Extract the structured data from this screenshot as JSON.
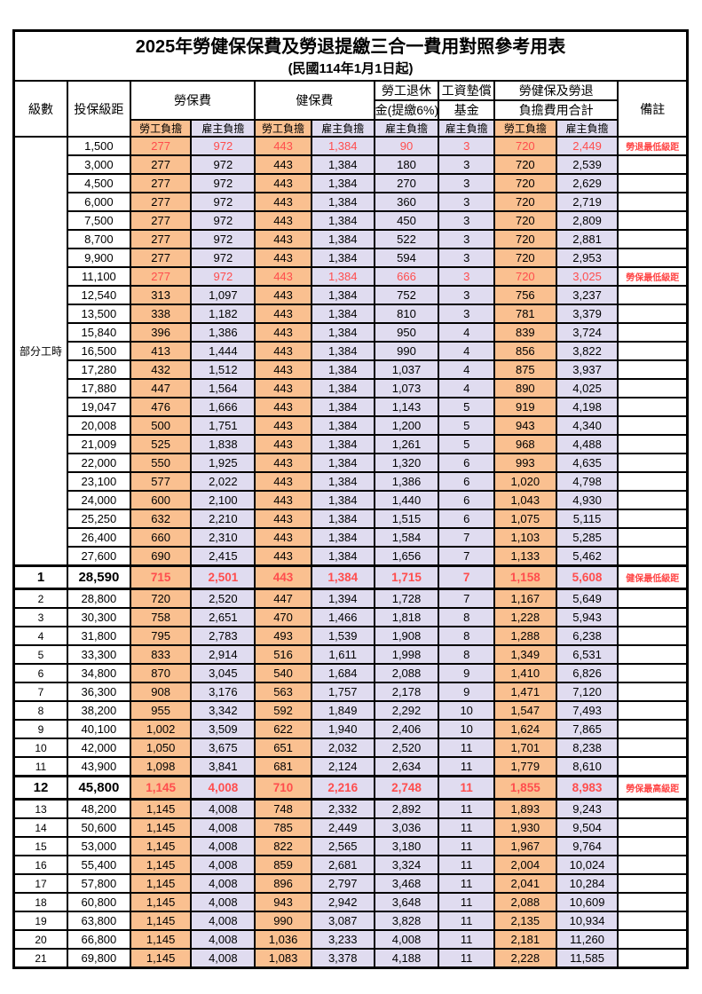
{
  "title": "2025年勞健保保費及勞退提繳三合一費用對照參考用表",
  "subtitle": "(民國114年1月1日起)",
  "header": {
    "level": "級數",
    "salary_bracket": "投保級距",
    "labor_insurance": "勞保費",
    "health_insurance": "健保費",
    "pension_line1": "勞工退休",
    "pension_line2": "金(提繳6%)",
    "wage_fund_line1": "工資墊償",
    "wage_fund_line2": "基金",
    "total_line1": "勞健保及勞退",
    "total_line2": "負擔費用合計",
    "remark": "備註",
    "worker_share": "勞工負擔",
    "employer_share": "雇主負擔"
  },
  "part_time_label": "部分工時",
  "part_time_rowspan": 23,
  "colors": {
    "worker_column_bg": "#FAC090",
    "employer_column_bg": "#E0DCF0",
    "highlight_red": "#FF4D4D",
    "note_red": "#FF4545",
    "border_black": "#000000"
  },
  "rows": [
    {
      "level": "",
      "salary": "1,500",
      "values": [
        "277",
        "972",
        "443",
        "1,384",
        "90",
        "3",
        "720",
        "2,449"
      ],
      "note": "勞退最低級距",
      "style": "hl"
    },
    {
      "level": "",
      "salary": "3,000",
      "values": [
        "277",
        "972",
        "443",
        "1,384",
        "180",
        "3",
        "720",
        "2,539"
      ],
      "note": "",
      "style": ""
    },
    {
      "level": "",
      "salary": "4,500",
      "values": [
        "277",
        "972",
        "443",
        "1,384",
        "270",
        "3",
        "720",
        "2,629"
      ],
      "note": "",
      "style": ""
    },
    {
      "level": "",
      "salary": "6,000",
      "values": [
        "277",
        "972",
        "443",
        "1,384",
        "360",
        "3",
        "720",
        "2,719"
      ],
      "note": "",
      "style": ""
    },
    {
      "level": "",
      "salary": "7,500",
      "values": [
        "277",
        "972",
        "443",
        "1,384",
        "450",
        "3",
        "720",
        "2,809"
      ],
      "note": "",
      "style": ""
    },
    {
      "level": "",
      "salary": "8,700",
      "values": [
        "277",
        "972",
        "443",
        "1,384",
        "522",
        "3",
        "720",
        "2,881"
      ],
      "note": "",
      "style": ""
    },
    {
      "level": "",
      "salary": "9,900",
      "values": [
        "277",
        "972",
        "443",
        "1,384",
        "594",
        "3",
        "720",
        "2,953"
      ],
      "note": "",
      "style": ""
    },
    {
      "level": "",
      "salary": "11,100",
      "values": [
        "277",
        "972",
        "443",
        "1,384",
        "666",
        "3",
        "720",
        "3,025"
      ],
      "note": "勞保最低級距",
      "style": "hl"
    },
    {
      "level": "",
      "salary": "12,540",
      "values": [
        "313",
        "1,097",
        "443",
        "1,384",
        "752",
        "3",
        "756",
        "3,237"
      ],
      "note": "",
      "style": ""
    },
    {
      "level": "",
      "salary": "13,500",
      "values": [
        "338",
        "1,182",
        "443",
        "1,384",
        "810",
        "3",
        "781",
        "3,379"
      ],
      "note": "",
      "style": ""
    },
    {
      "level": "",
      "salary": "15,840",
      "values": [
        "396",
        "1,386",
        "443",
        "1,384",
        "950",
        "4",
        "839",
        "3,724"
      ],
      "note": "",
      "style": ""
    },
    {
      "level": "",
      "salary": "16,500",
      "values": [
        "413",
        "1,444",
        "443",
        "1,384",
        "990",
        "4",
        "856",
        "3,822"
      ],
      "note": "",
      "style": ""
    },
    {
      "level": "",
      "salary": "17,280",
      "values": [
        "432",
        "1,512",
        "443",
        "1,384",
        "1,037",
        "4",
        "875",
        "3,937"
      ],
      "note": "",
      "style": ""
    },
    {
      "level": "",
      "salary": "17,880",
      "values": [
        "447",
        "1,564",
        "443",
        "1,384",
        "1,073",
        "4",
        "890",
        "4,025"
      ],
      "note": "",
      "style": ""
    },
    {
      "level": "",
      "salary": "19,047",
      "values": [
        "476",
        "1,666",
        "443",
        "1,384",
        "1,143",
        "5",
        "919",
        "4,198"
      ],
      "note": "",
      "style": ""
    },
    {
      "level": "",
      "salary": "20,008",
      "values": [
        "500",
        "1,751",
        "443",
        "1,384",
        "1,200",
        "5",
        "943",
        "4,340"
      ],
      "note": "",
      "style": ""
    },
    {
      "level": "",
      "salary": "21,009",
      "values": [
        "525",
        "1,838",
        "443",
        "1,384",
        "1,261",
        "5",
        "968",
        "4,488"
      ],
      "note": "",
      "style": ""
    },
    {
      "level": "",
      "salary": "22,000",
      "values": [
        "550",
        "1,925",
        "443",
        "1,384",
        "1,320",
        "6",
        "993",
        "4,635"
      ],
      "note": "",
      "style": ""
    },
    {
      "level": "",
      "salary": "23,100",
      "values": [
        "577",
        "2,022",
        "443",
        "1,384",
        "1,386",
        "6",
        "1,020",
        "4,798"
      ],
      "note": "",
      "style": ""
    },
    {
      "level": "",
      "salary": "24,000",
      "values": [
        "600",
        "2,100",
        "443",
        "1,384",
        "1,440",
        "6",
        "1,043",
        "4,930"
      ],
      "note": "",
      "style": ""
    },
    {
      "level": "",
      "salary": "25,250",
      "values": [
        "632",
        "2,210",
        "443",
        "1,384",
        "1,515",
        "6",
        "1,075",
        "5,115"
      ],
      "note": "",
      "style": ""
    },
    {
      "level": "",
      "salary": "26,400",
      "values": [
        "660",
        "2,310",
        "443",
        "1,384",
        "1,584",
        "7",
        "1,103",
        "5,285"
      ],
      "note": "",
      "style": ""
    },
    {
      "level": "",
      "salary": "27,600",
      "values": [
        "690",
        "2,415",
        "443",
        "1,384",
        "1,656",
        "7",
        "1,133",
        "5,462"
      ],
      "note": "",
      "style": ""
    },
    {
      "level": "1",
      "salary": "28,590",
      "values": [
        "715",
        "2,501",
        "443",
        "1,384",
        "1,715",
        "7",
        "1,158",
        "5,608"
      ],
      "note": "健保最低級距",
      "style": "hlbold"
    },
    {
      "level": "2",
      "salary": "28,800",
      "values": [
        "720",
        "2,520",
        "447",
        "1,394",
        "1,728",
        "7",
        "1,167",
        "5,649"
      ],
      "note": "",
      "style": ""
    },
    {
      "level": "3",
      "salary": "30,300",
      "values": [
        "758",
        "2,651",
        "470",
        "1,466",
        "1,818",
        "8",
        "1,228",
        "5,943"
      ],
      "note": "",
      "style": ""
    },
    {
      "level": "4",
      "salary": "31,800",
      "values": [
        "795",
        "2,783",
        "493",
        "1,539",
        "1,908",
        "8",
        "1,288",
        "6,238"
      ],
      "note": "",
      "style": ""
    },
    {
      "level": "5",
      "salary": "33,300",
      "values": [
        "833",
        "2,914",
        "516",
        "1,611",
        "1,998",
        "8",
        "1,349",
        "6,531"
      ],
      "note": "",
      "style": ""
    },
    {
      "level": "6",
      "salary": "34,800",
      "values": [
        "870",
        "3,045",
        "540",
        "1,684",
        "2,088",
        "9",
        "1,410",
        "6,826"
      ],
      "note": "",
      "style": ""
    },
    {
      "level": "7",
      "salary": "36,300",
      "values": [
        "908",
        "3,176",
        "563",
        "1,757",
        "2,178",
        "9",
        "1,471",
        "7,120"
      ],
      "note": "",
      "style": ""
    },
    {
      "level": "8",
      "salary": "38,200",
      "values": [
        "955",
        "3,342",
        "592",
        "1,849",
        "2,292",
        "10",
        "1,547",
        "7,493"
      ],
      "note": "",
      "style": ""
    },
    {
      "level": "9",
      "salary": "40,100",
      "values": [
        "1,002",
        "3,509",
        "622",
        "1,940",
        "2,406",
        "10",
        "1,624",
        "7,865"
      ],
      "note": "",
      "style": ""
    },
    {
      "level": "10",
      "salary": "42,000",
      "values": [
        "1,050",
        "3,675",
        "651",
        "2,032",
        "2,520",
        "11",
        "1,701",
        "8,238"
      ],
      "note": "",
      "style": ""
    },
    {
      "level": "11",
      "salary": "43,900",
      "values": [
        "1,098",
        "3,841",
        "681",
        "2,124",
        "2,634",
        "11",
        "1,779",
        "8,610"
      ],
      "note": "",
      "style": ""
    },
    {
      "level": "12",
      "salary": "45,800",
      "values": [
        "1,145",
        "4,008",
        "710",
        "2,216",
        "2,748",
        "11",
        "1,855",
        "8,983"
      ],
      "note": "勞保最高級距",
      "style": "hlbold"
    },
    {
      "level": "13",
      "salary": "48,200",
      "values": [
        "1,145",
        "4,008",
        "748",
        "2,332",
        "2,892",
        "11",
        "1,893",
        "9,243"
      ],
      "note": "",
      "style": ""
    },
    {
      "level": "14",
      "salary": "50,600",
      "values": [
        "1,145",
        "4,008",
        "785",
        "2,449",
        "3,036",
        "11",
        "1,930",
        "9,504"
      ],
      "note": "",
      "style": ""
    },
    {
      "level": "15",
      "salary": "53,000",
      "values": [
        "1,145",
        "4,008",
        "822",
        "2,565",
        "3,180",
        "11",
        "1,967",
        "9,764"
      ],
      "note": "",
      "style": ""
    },
    {
      "level": "16",
      "salary": "55,400",
      "values": [
        "1,145",
        "4,008",
        "859",
        "2,681",
        "3,324",
        "11",
        "2,004",
        "10,024"
      ],
      "note": "",
      "style": ""
    },
    {
      "level": "17",
      "salary": "57,800",
      "values": [
        "1,145",
        "4,008",
        "896",
        "2,797",
        "3,468",
        "11",
        "2,041",
        "10,284"
      ],
      "note": "",
      "style": ""
    },
    {
      "level": "18",
      "salary": "60,800",
      "values": [
        "1,145",
        "4,008",
        "943",
        "2,942",
        "3,648",
        "11",
        "2,088",
        "10,609"
      ],
      "note": "",
      "style": ""
    },
    {
      "level": "19",
      "salary": "63,800",
      "values": [
        "1,145",
        "4,008",
        "990",
        "3,087",
        "3,828",
        "11",
        "2,135",
        "10,934"
      ],
      "note": "",
      "style": ""
    },
    {
      "level": "20",
      "salary": "66,800",
      "values": [
        "1,145",
        "4,008",
        "1,036",
        "3,233",
        "4,008",
        "11",
        "2,181",
        "11,260"
      ],
      "note": "",
      "style": ""
    },
    {
      "level": "21",
      "salary": "69,800",
      "values": [
        "1,145",
        "4,008",
        "1,083",
        "3,378",
        "4,188",
        "11",
        "2,228",
        "11,585"
      ],
      "note": "",
      "style": ""
    }
  ]
}
